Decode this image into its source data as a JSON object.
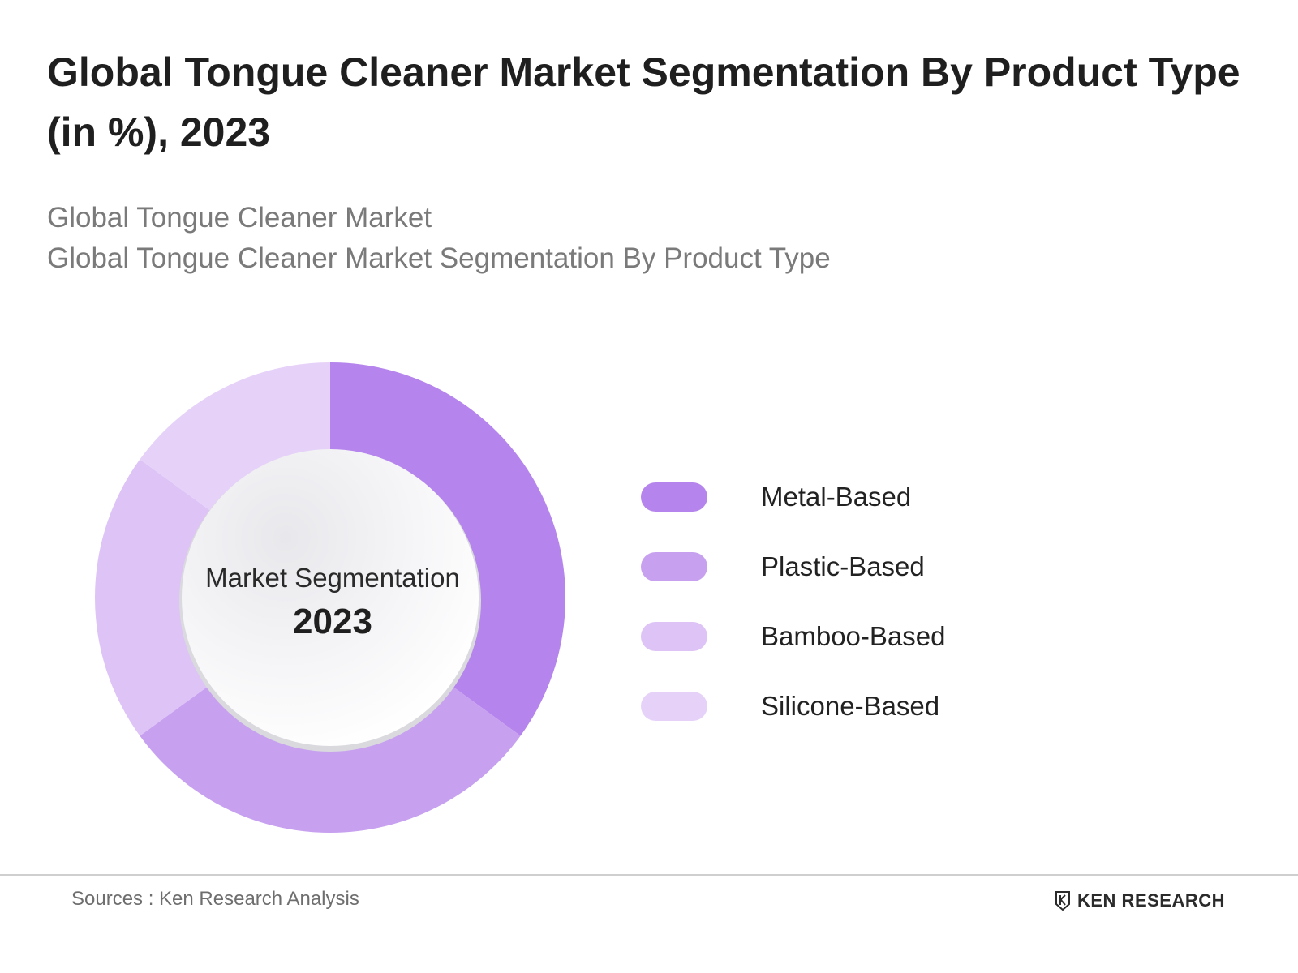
{
  "header": {
    "title": "Global Tongue Cleaner Market Segmentation By Product Type (in %), 2023",
    "subtitle_line1": "Global Tongue Cleaner Market",
    "subtitle_line2": "Global Tongue Cleaner Market Segmentation By Product Type"
  },
  "center": {
    "label": "Market Segmentation",
    "year": "2023"
  },
  "chart_data": {
    "type": "pie",
    "title": "Global Tongue Cleaner Market Segmentation By Product Type (in %), 2023",
    "categories": [
      "Metal-Based",
      "Plastic-Based",
      "Bamboo-Based",
      "Silicone-Based"
    ],
    "values": [
      35,
      30,
      20,
      15
    ],
    "colors": [
      "#b584ec",
      "#c7a0f0",
      "#ddc3f6",
      "#e6d2f8"
    ],
    "legend": "right"
  },
  "footer": {
    "source": "Sources : Ken Research Analysis",
    "brand": "KEN RESEARCH",
    "brand_icon": "ken-research-logo-icon"
  }
}
